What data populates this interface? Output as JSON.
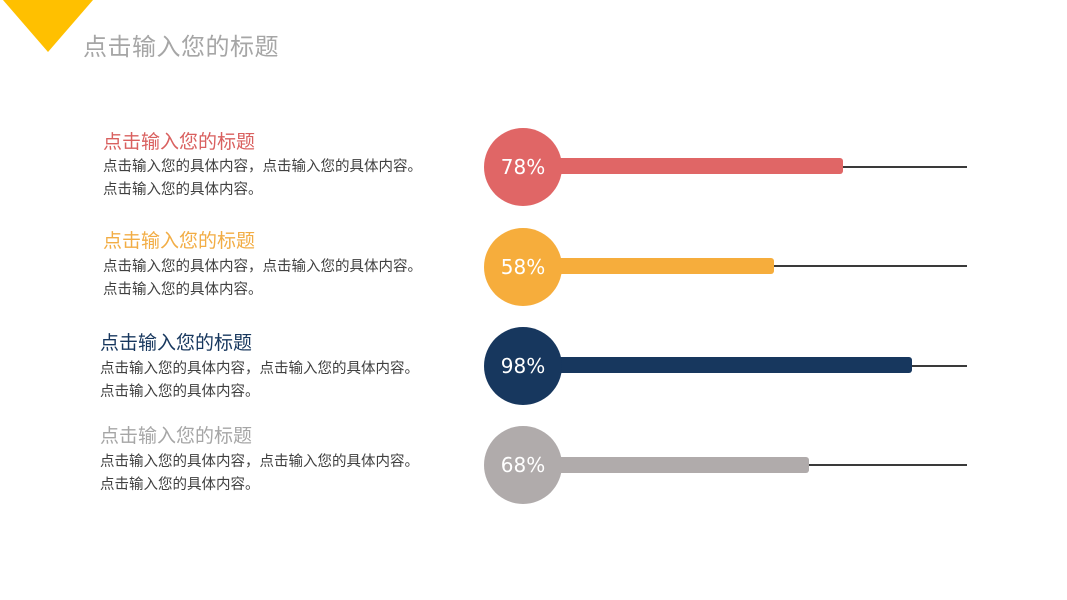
{
  "header": {
    "title": "点击输入您的标题",
    "accent_color": "#ffc000"
  },
  "chart_data": {
    "type": "bar",
    "orientation": "horizontal",
    "categories": [
      "点击输入您的标题",
      "点击输入您的标题",
      "点击输入您的标题",
      "点击输入您的标题"
    ],
    "values": [
      78,
      58,
      98,
      68
    ],
    "value_labels": [
      "78%",
      "58%",
      "98%",
      "68%"
    ],
    "xlim": [
      0,
      100
    ],
    "grid": false
  },
  "items": [
    {
      "title": "点击输入您的标题",
      "desc": "点击输入您的具体内容，点击输入您的具体内容。点击输入您的具体内容。",
      "label": "78%",
      "value": 78,
      "color": "#e06666",
      "title_color": "#d9605f"
    },
    {
      "title": "点击输入您的标题",
      "desc": "点击输入您的具体内容，点击输入您的具体内容。点击输入您的具体内容。",
      "label": "58%",
      "value": 58,
      "color": "#f6ad3c",
      "title_color": "#f2ad45"
    },
    {
      "title": "点击输入您的标题",
      "desc": "点击输入您的具体内容，点击输入您的具体内容。点击输入您的具体内容。",
      "label": "98%",
      "value": 98,
      "color": "#17375e",
      "title_color": "#17375e"
    },
    {
      "title": "点击输入您的标题",
      "desc": "点击输入您的具体内容，点击输入您的具体内容。点击输入您的具体内容。",
      "label": "68%",
      "value": 68,
      "color": "#b0abab",
      "title_color": "#a6a6a6"
    }
  ]
}
